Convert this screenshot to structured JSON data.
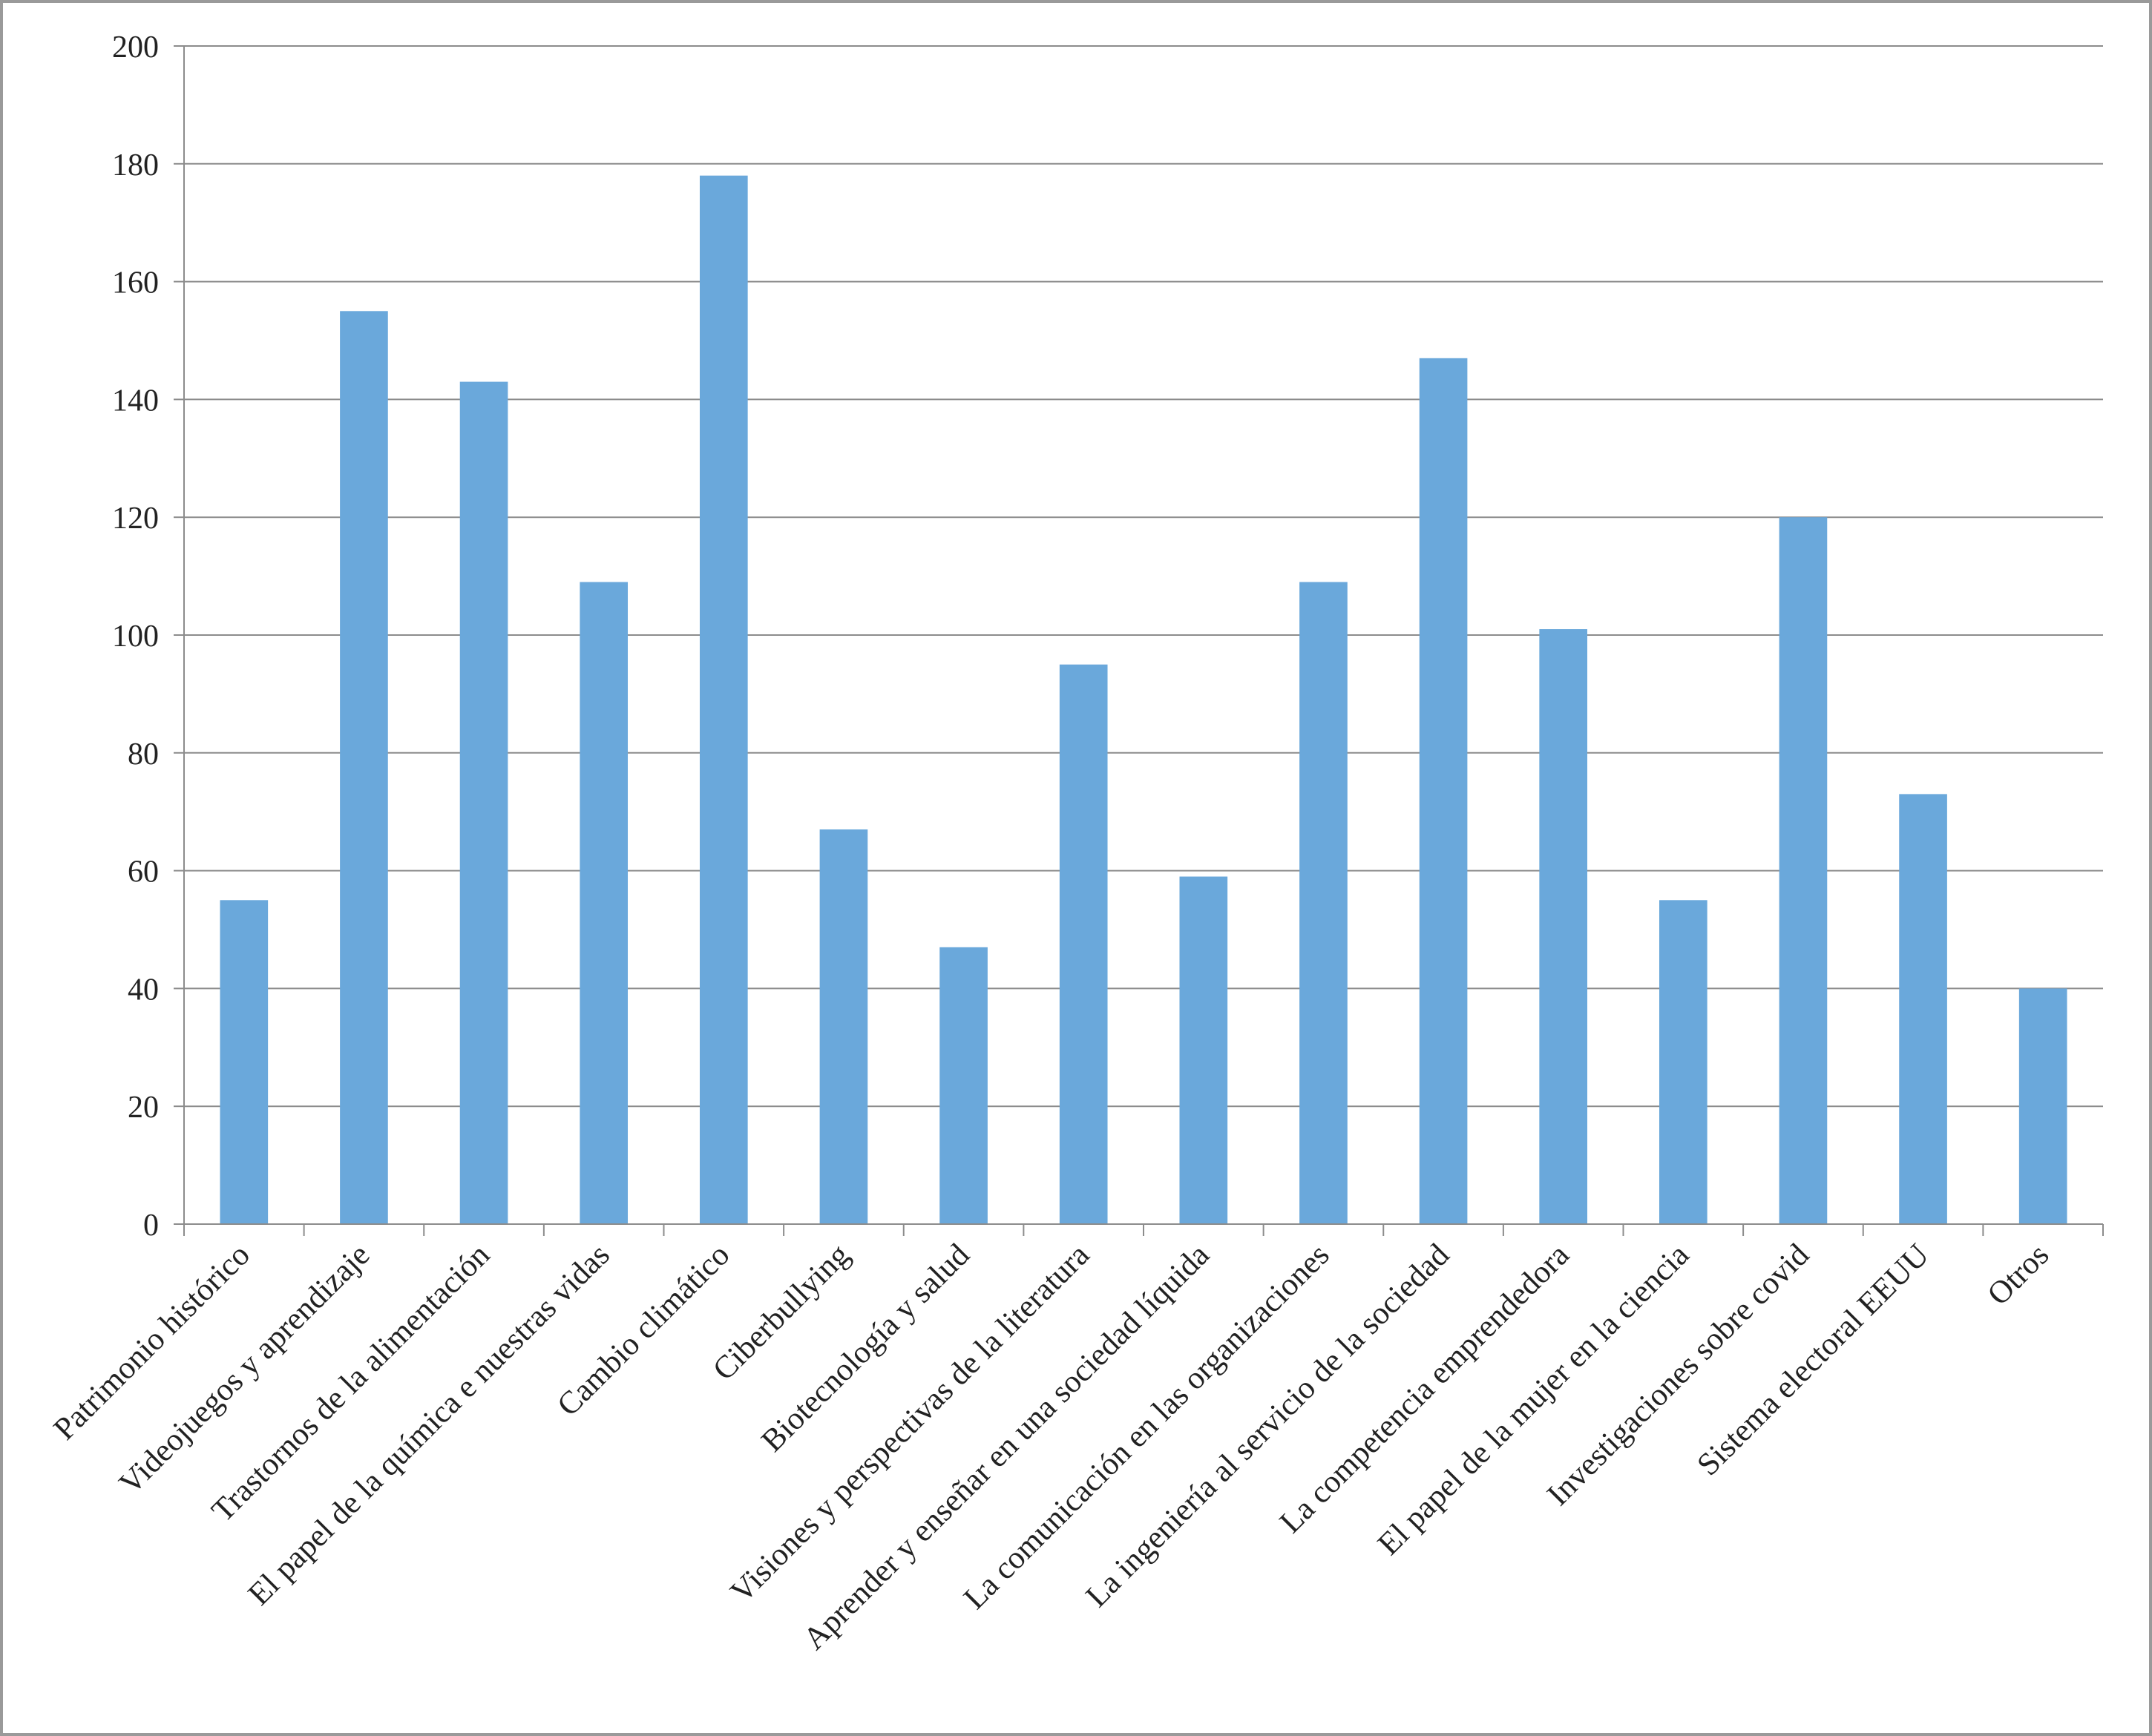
{
  "chart_data": {
    "type": "bar",
    "title": "",
    "xlabel": "",
    "ylabel": "",
    "categories": [
      "Patrimonio histórico",
      "Videojuegos y aprendizaje",
      "Trastornos de la alimentación",
      "El papel de la química e nuestras vidas",
      "Cambio climático",
      "Ciberbullying",
      "Biotecnología y salud",
      "Visiones y perspectivas de la literatura",
      "Aprender y enseñar en una sociedad líquida",
      "La comunicación en las organizaciones",
      "La ingeniería al servicio de la sociedad",
      "La competencia emprendedora",
      "El papel de la mujer en la ciencia",
      "Investigaciones sobre covid",
      "Sistema electoral EEUU",
      "Otros"
    ],
    "values": [
      55,
      155,
      143,
      109,
      178,
      67,
      47,
      95,
      59,
      109,
      147,
      101,
      55,
      120,
      73,
      40
    ],
    "ylim": [
      0,
      200
    ],
    "yticks": [
      0,
      20,
      40,
      60,
      80,
      100,
      120,
      140,
      160,
      180,
      200
    ],
    "grid": true,
    "legend": "none",
    "colors": {
      "bar": "#6aa8db",
      "grid": "#8c8c8c",
      "axis": "#8c8c8c",
      "text": "#222222"
    }
  }
}
